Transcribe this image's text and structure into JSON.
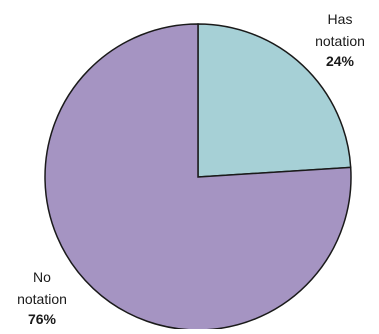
{
  "chart_data": {
    "type": "pie",
    "slices": [
      {
        "label_lines": [
          "Has",
          "notation"
        ],
        "value": 24,
        "value_label": "24%",
        "color": "#a6d0d6"
      },
      {
        "label_lines": [
          "No",
          "notation"
        ],
        "value": 76,
        "value_label": "76%",
        "color": "#a594c2"
      }
    ],
    "start_angle_deg": 0,
    "direction": "clockwise",
    "edge_color": "#1a1a1a"
  }
}
